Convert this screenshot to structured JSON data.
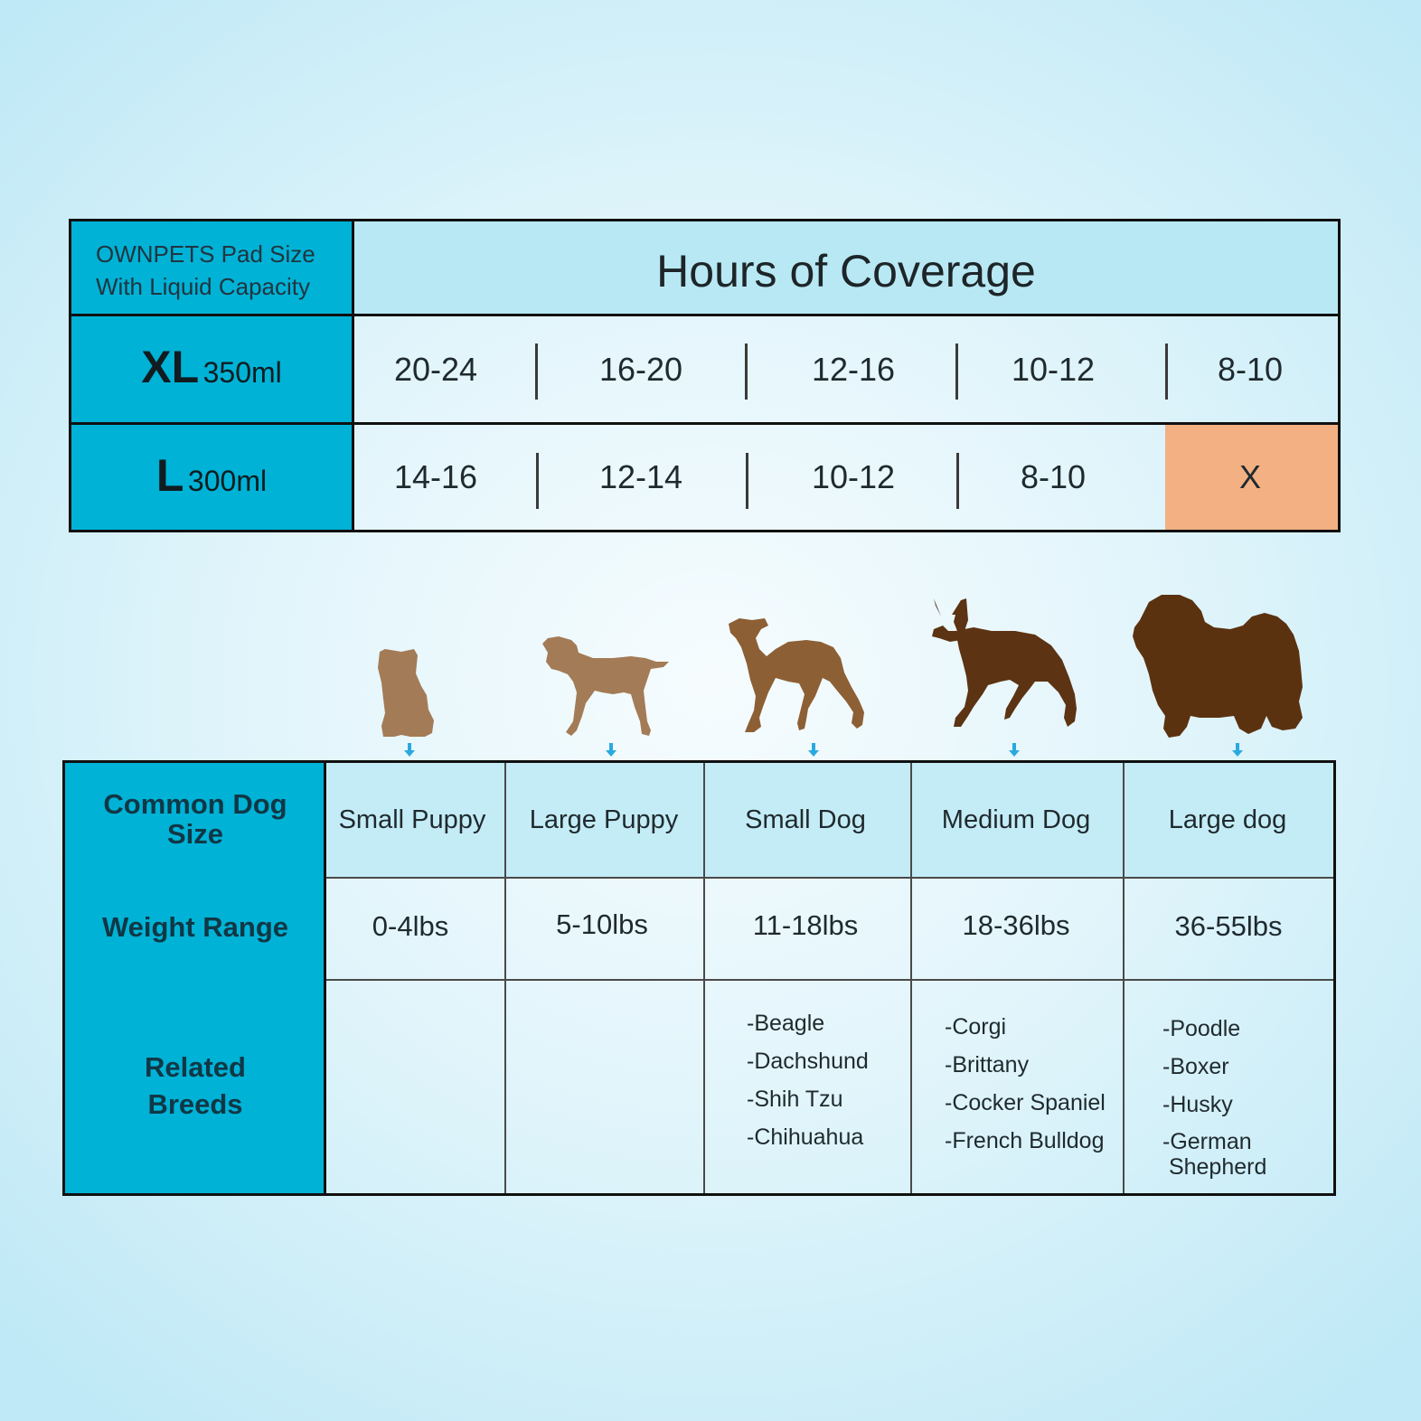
{
  "coverage": {
    "label_line1": "OWNPETS Pad Size",
    "label_line2": "With Liquid Capacity",
    "heading": "Hours of Coverage",
    "rows": [
      {
        "size": "XL",
        "capacity": "350ml",
        "values": [
          "20-24",
          "16-20",
          "12-16",
          "10-12",
          "8-10"
        ]
      },
      {
        "size": "L",
        "capacity": "300ml",
        "values": [
          "14-16",
          "12-14",
          "10-12",
          "8-10",
          "X"
        ]
      }
    ],
    "highlight_color": "#f2b083"
  },
  "dogs": [
    {
      "icon": "small-puppy-silhouette-icon",
      "color": "#a37b56"
    },
    {
      "icon": "large-puppy-silhouette-icon",
      "color": "#a37b56"
    },
    {
      "icon": "small-dog-silhouette-icon",
      "color": "#8d5f35"
    },
    {
      "icon": "medium-dog-silhouette-icon",
      "color": "#5c3313"
    },
    {
      "icon": "large-dog-silhouette-icon",
      "color": "#5b3210"
    }
  ],
  "size_table": {
    "labels": {
      "size_line1": "Common Dog",
      "size_line2": "Size",
      "weight": "Weight Range",
      "breeds_line1": "Related",
      "breeds_line2": "Breeds"
    },
    "sizes": [
      "Small Puppy",
      "Large Puppy",
      "Small Dog",
      "Medium Dog",
      "Large dog"
    ],
    "weights": [
      "0-4lbs",
      "5-10lbs",
      "11-18lbs",
      "18-36lbs",
      "36-55lbs"
    ],
    "breeds": {
      "small_dog": [
        "-Beagle",
        "-Dachshund",
        "-Shih Tzu",
        "-Chihuahua"
      ],
      "medium_dog": [
        "-Corgi",
        "-Brittany",
        "-Cocker Spaniel",
        "-French Bulldog"
      ],
      "large_dog": [
        "-Poodle",
        "-Boxer",
        "-Husky",
        "-German",
        " Shepherd"
      ]
    }
  },
  "colors": {
    "accent": "#00b2d6",
    "header_light": "#b8e8f4",
    "arrow": "#29a9e0"
  }
}
